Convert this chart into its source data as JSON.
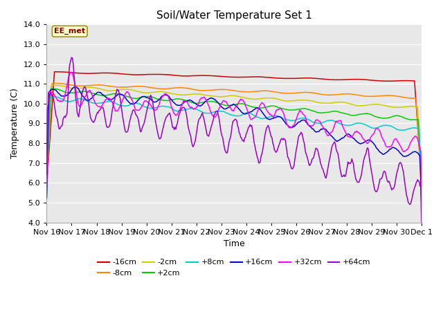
{
  "title": "Soil/Water Temperature Set 1",
  "xlabel": "Time",
  "ylabel": "Temperature (C)",
  "ylim": [
    4.0,
    14.0
  ],
  "yticks": [
    4.0,
    5.0,
    6.0,
    7.0,
    8.0,
    9.0,
    10.0,
    11.0,
    12.0,
    13.0,
    14.0
  ],
  "fig_bg_color": "#ffffff",
  "plot_bg_color": "#e8e8e8",
  "grid_color": "#ffffff",
  "annotation_text": "EE_met",
  "annotation_bg": "#ffffcc",
  "annotation_border": "#999900",
  "annotation_text_color": "#880000",
  "series_colors": {
    "-16cm": "#cc0000",
    "-8cm": "#ff8800",
    "-2cm": "#cccc00",
    "+2cm": "#00cc00",
    "+8cm": "#00cccc",
    "+16cm": "#0000cc",
    "+32cm": "#ff00ff",
    "+64cm": "#9900cc"
  },
  "legend_order": [
    "-16cm",
    "-8cm",
    "-2cm",
    "+2cm",
    "+8cm",
    "+16cm",
    "+32cm",
    "+64cm"
  ],
  "x_tick_labels": [
    "Nov 16",
    "Nov 17",
    "Nov 18",
    "Nov 19",
    "Nov 20",
    "Nov 21",
    "Nov 22",
    "Nov 23",
    "Nov 24",
    "Nov 25",
    "Nov 26",
    "Nov 27",
    "Nov 28",
    "Nov 29",
    "Nov 30",
    "Dec 1"
  ],
  "n_points": 480,
  "days": 15
}
